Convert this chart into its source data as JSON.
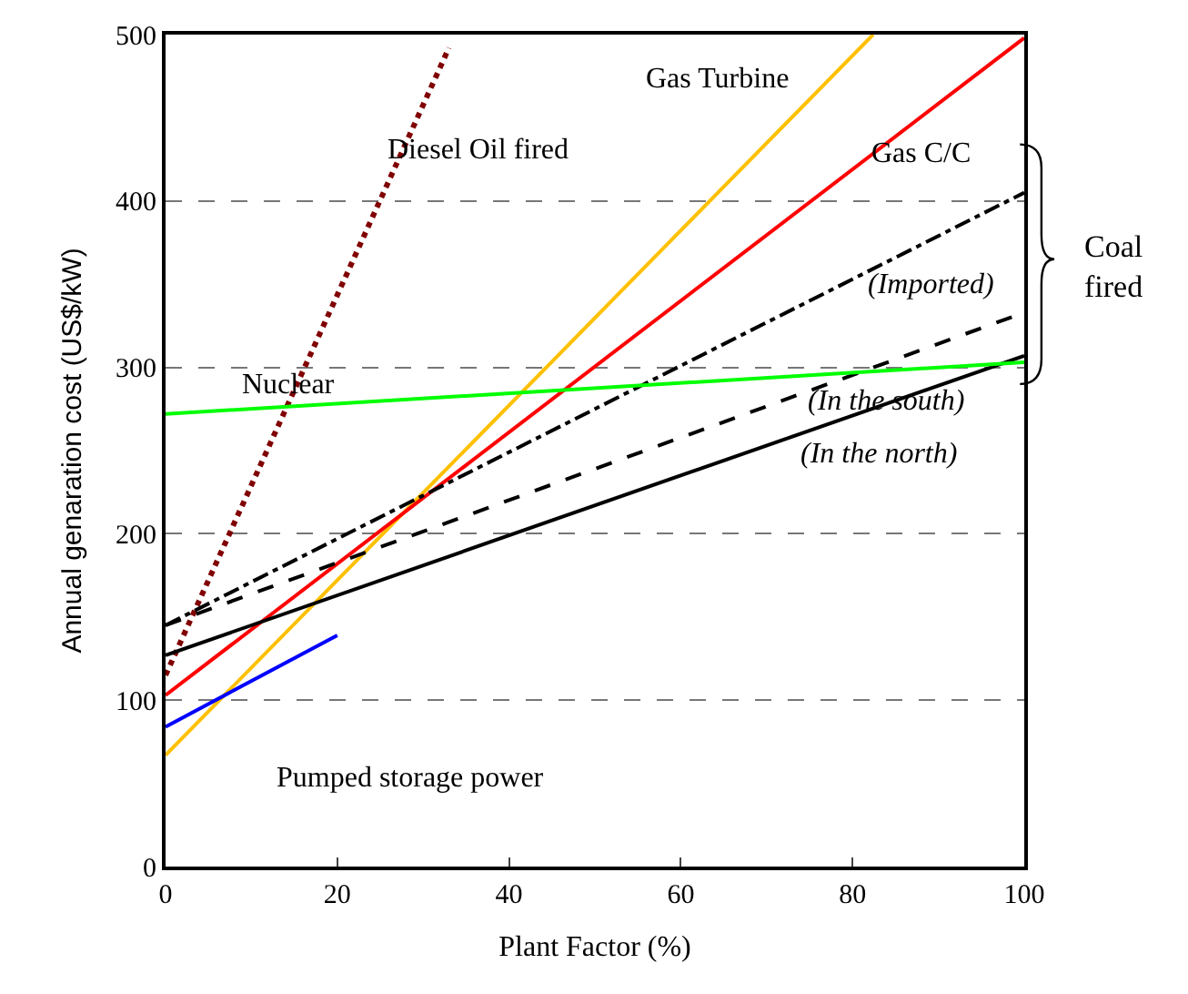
{
  "chart_data": {
    "type": "line",
    "xlabel": "Plant Factor (%)",
    "ylabel": "Annual genaration cost (US$/kW)",
    "xlim": [
      0,
      100
    ],
    "xticks": [
      0,
      20,
      40,
      60,
      80,
      100
    ],
    "ylim": [
      0,
      500
    ],
    "yticks": [
      0,
      100,
      200,
      300,
      400,
      500
    ],
    "grid": "y",
    "legend": false,
    "marker": "none",
    "series": [
      {
        "name": "Diesel Oil fired",
        "color": "#800000",
        "line_style": "dotted",
        "x": [
          0,
          33
        ],
        "values": [
          115,
          492
        ]
      },
      {
        "name": "Gas Turbine",
        "color": "#ffc000",
        "line_style": "solid",
        "x": [
          0,
          82.4
        ],
        "values": [
          67,
          500
        ]
      },
      {
        "name": "Gas C/C",
        "color": "#ff0000",
        "line_style": "solid",
        "x": [
          0,
          100
        ],
        "values": [
          103,
          498
        ]
      },
      {
        "name": "(Imported)",
        "color": "#000000",
        "line_style": "dashdot",
        "x": [
          0,
          100
        ],
        "values": [
          145,
          405
        ]
      },
      {
        "name": "(In the south)",
        "color": "#000000",
        "line_style": "dashed",
        "x": [
          0,
          100
        ],
        "values": [
          145,
          333
        ]
      },
      {
        "name": "(In the north)",
        "color": "#000000",
        "line_style": "solid",
        "x": [
          0,
          100
        ],
        "values": [
          127,
          307
        ]
      },
      {
        "name": "Nuclear",
        "color": "#00ff00",
        "line_style": "solid",
        "x": [
          0,
          100
        ],
        "values": [
          272,
          303
        ]
      },
      {
        "name": "Pumped storage power",
        "color": "#0000ff",
        "line_style": "solid",
        "x": [
          0,
          20
        ],
        "values": [
          84,
          139
        ]
      }
    ],
    "annotations": [
      "Coal fired"
    ]
  }
}
